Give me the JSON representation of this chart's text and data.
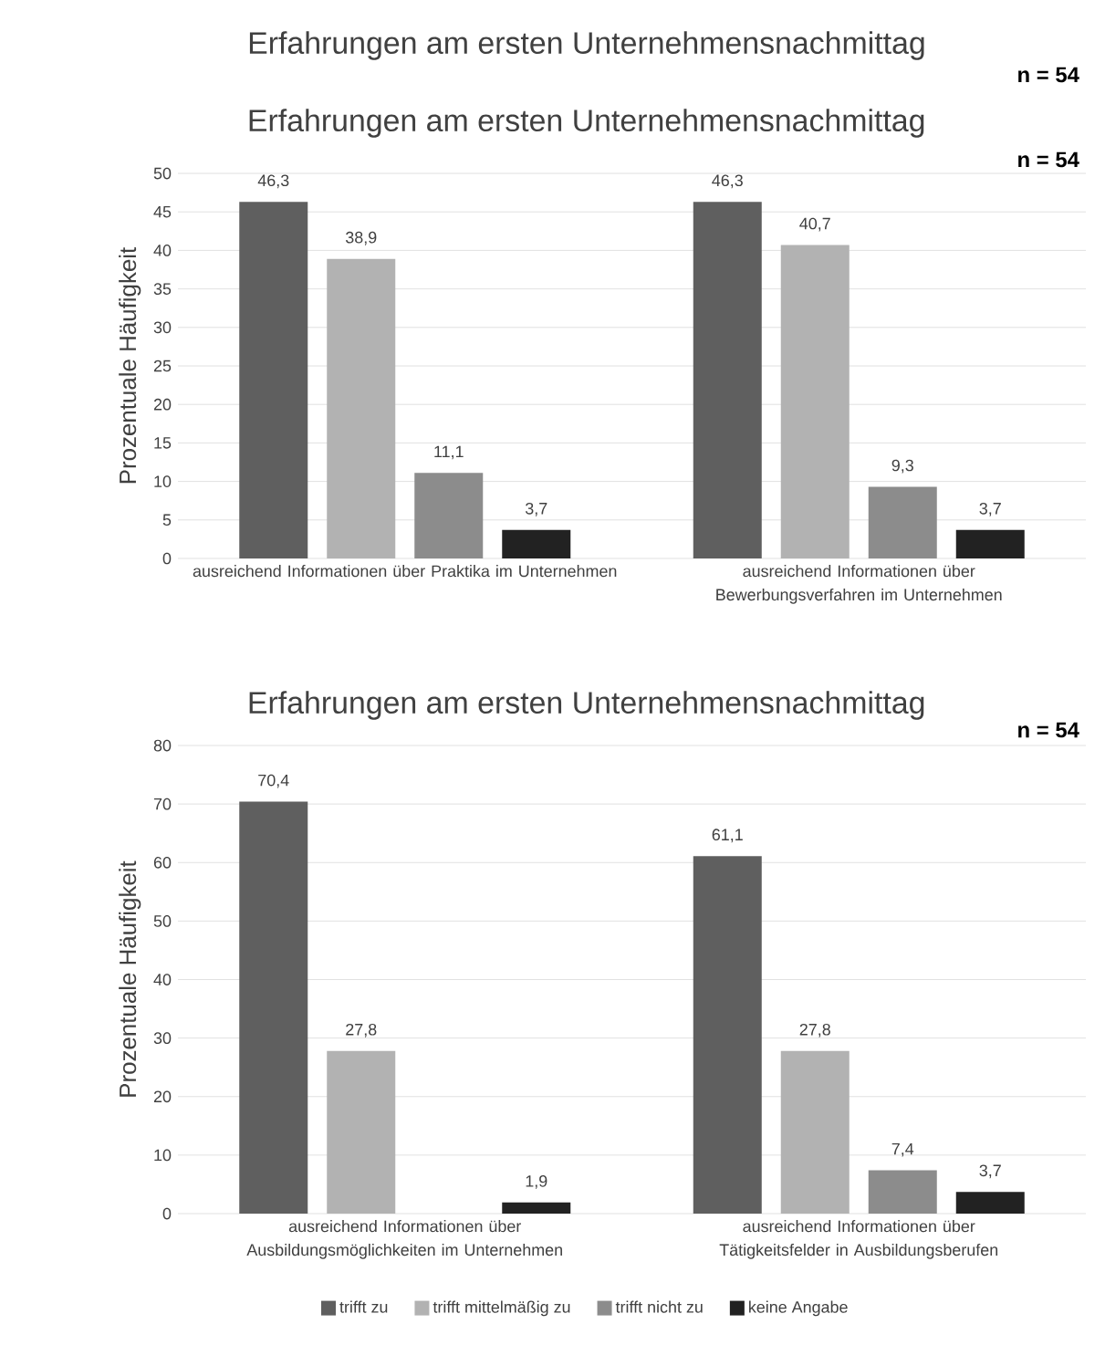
{
  "chart_data": [
    {
      "type": "other",
      "title": "Erfahrungen am ersten Unternehmensnachmittag",
      "annotations": [
        "n = 54"
      ]
    },
    {
      "type": "bar",
      "title": "Erfahrungen am ersten Unternehmensnachmittag",
      "annotations": [
        "n = 54"
      ],
      "ylabel": "Prozentuale Häufigkeit",
      "categories": [
        "ausreichend Informationen über Praktika im Unternehmen",
        "ausreichend Informationen über Bewerbungsverfahren im Unternehmen"
      ],
      "series": [
        {
          "color": "#5f5f5f",
          "values": [
            46.3,
            46.3
          ],
          "value_labels": [
            "46,3",
            "46,3"
          ]
        },
        {
          "color": "#b2b2b2",
          "values": [
            38.9,
            40.7
          ],
          "value_labels": [
            "38,9",
            "40,7"
          ]
        },
        {
          "color": "#8c8c8c",
          "values": [
            11.1,
            9.3
          ],
          "value_labels": [
            "11,1",
            "9,3"
          ]
        },
        {
          "color": "#222222",
          "values": [
            3.7,
            3.7
          ],
          "value_labels": [
            "3,7",
            "3,7"
          ]
        }
      ],
      "ylim": [
        0,
        50
      ],
      "yticks": [
        0,
        5,
        10,
        15,
        20,
        25,
        30,
        35,
        40,
        45,
        50
      ],
      "grid": "y"
    },
    {
      "type": "bar",
      "title": "Erfahrungen am ersten Unternehmensnachmittag",
      "annotations": [
        "n = 54"
      ],
      "ylabel": "Prozentuale Häufigkeit",
      "categories": [
        "ausreichend Informationen über Ausbildungsmöglichkeiten im Unternehmen",
        "ausreichend Informationen über Tätigkeitsfelder in Ausbildungsberufen"
      ],
      "series": [
        {
          "name": "trifft zu",
          "color": "#5f5f5f",
          "values": [
            70.4,
            61.1
          ],
          "value_labels": [
            "70,4",
            "61,1"
          ]
        },
        {
          "name": "trifft  mittelmäßig zu",
          "color": "#b2b2b2",
          "values": [
            27.8,
            27.8
          ],
          "value_labels": [
            "27,8",
            "27,8"
          ]
        },
        {
          "name": "trifft nicht zu",
          "color": "#8c8c8c",
          "values": [
            null,
            7.4
          ],
          "value_labels": [
            null,
            "7,4"
          ]
        },
        {
          "name": "keine Angabe",
          "color": "#222222",
          "values": [
            1.9,
            3.7
          ],
          "value_labels": [
            "1,9",
            "3,7"
          ]
        }
      ],
      "ylim": [
        0,
        80
      ],
      "yticks": [
        0,
        10,
        20,
        30,
        40,
        50,
        60,
        70,
        80
      ],
      "grid": "y",
      "legend": "bottom"
    }
  ]
}
